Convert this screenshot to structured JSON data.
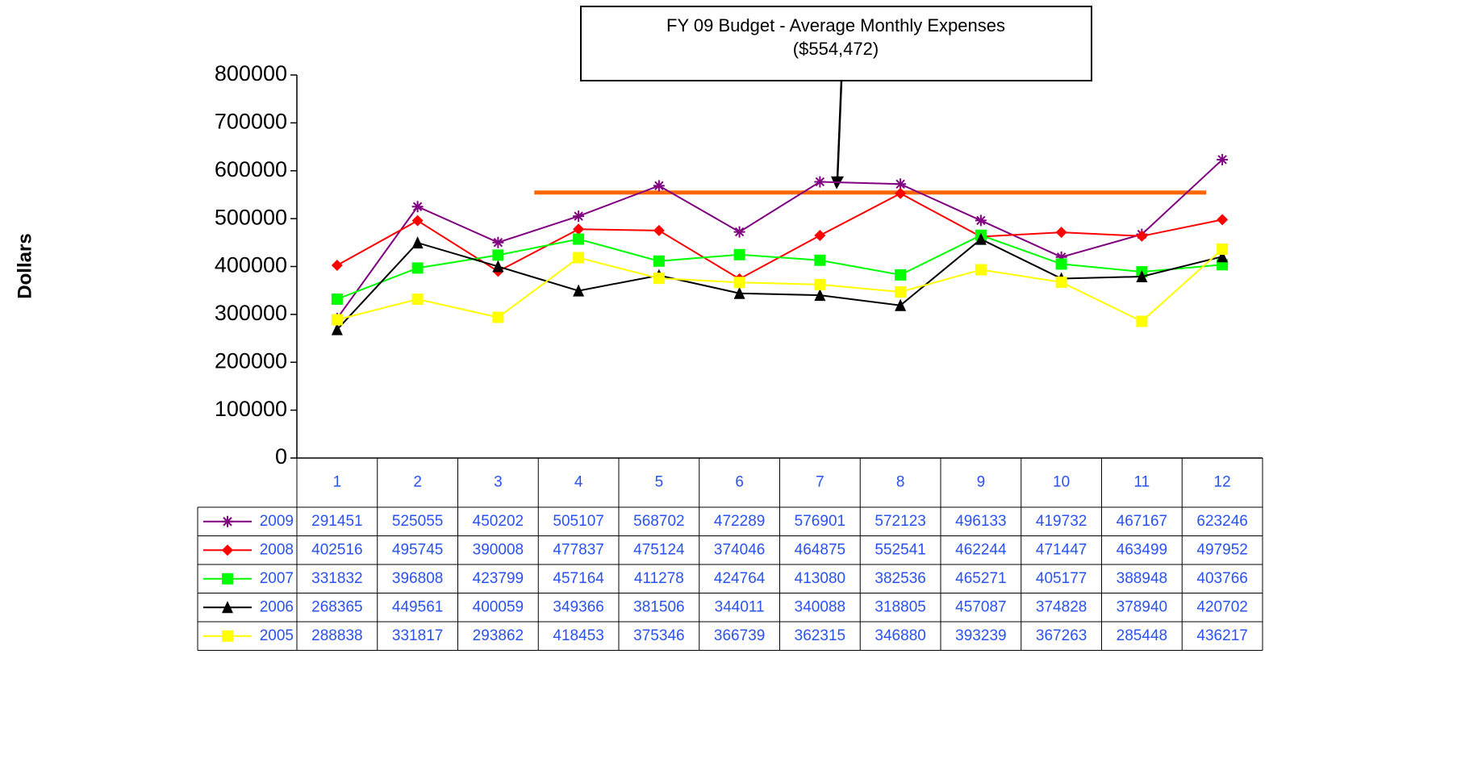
{
  "chart_data": {
    "type": "line",
    "y_label": "Dollars",
    "annotation": {
      "lines": [
        "FY 09  Budget - Average Monthly Expenses",
        "($554,472)"
      ],
      "value": 554472,
      "color": "#ff6600"
    },
    "categories": [
      "1",
      "2",
      "3",
      "4",
      "5",
      "6",
      "7",
      "8",
      "9",
      "10",
      "11",
      "12"
    ],
    "series": [
      {
        "name": "2009",
        "color": "#800080",
        "marker": "star",
        "values": [
          291451,
          525055,
          450202,
          505107,
          568702,
          472289,
          576901,
          572123,
          496133,
          419732,
          467167,
          623246
        ]
      },
      {
        "name": "2008",
        "color": "#ff0000",
        "marker": "diamond",
        "values": [
          402516,
          495745,
          390008,
          477837,
          475124,
          374046,
          464875,
          552541,
          462244,
          471447,
          463499,
          497952
        ]
      },
      {
        "name": "2007",
        "color": "#00ff00",
        "marker": "square",
        "values": [
          331832,
          396808,
          423799,
          457164,
          411278,
          424764,
          413080,
          382536,
          465271,
          405177,
          388948,
          403766
        ]
      },
      {
        "name": "2006",
        "color": "#000000",
        "marker": "triangle",
        "values": [
          268365,
          449561,
          400059,
          349366,
          381506,
          344011,
          340088,
          318805,
          457087,
          374828,
          378940,
          420702
        ]
      },
      {
        "name": "2005",
        "color": "#ffff00",
        "marker": "square",
        "values": [
          288838,
          331817,
          293862,
          418453,
          375346,
          366739,
          362315,
          346880,
          393239,
          367263,
          285448,
          436217
        ]
      }
    ],
    "ylim": [
      0,
      800000
    ],
    "yticks": [
      0,
      100000,
      200000,
      300000,
      400000,
      500000,
      600000,
      700000,
      800000
    ],
    "data_table": true
  }
}
